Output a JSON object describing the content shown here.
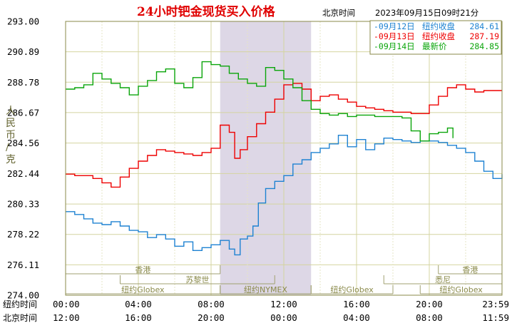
{
  "header": {
    "title": "24小时钯金现货买入价格",
    "tz_label": "北京时间",
    "timestamp": "2023年09月15日09时21分"
  },
  "chart_data": {
    "type": "line",
    "ylabel": "人民币/克",
    "ylim": [
      274.0,
      293.0
    ],
    "yticks": [
      "293.00",
      "290.89",
      "288.78",
      "286.67",
      "284.56",
      "282.44",
      "280.33",
      "278.22",
      "276.11",
      "274.00"
    ],
    "x_rows": [
      {
        "label": "纽约时间",
        "ticks": [
          "00:00",
          "04:00",
          "08:00",
          "12:00",
          "16:00",
          "20:00",
          "23:59"
        ]
      },
      {
        "label": "北京时间",
        "ticks": [
          "12:00",
          "16:00",
          "20:00",
          "00:00",
          "04:00",
          "08:00",
          "11:59"
        ]
      }
    ],
    "x_range_hours": [
      0,
      24
    ],
    "shaded_session_hours": [
      8.5,
      13.5
    ],
    "grid": true,
    "legend_position": "top-right",
    "markets": {
      "row1": [
        {
          "name": "香港",
          "start": 0,
          "end": 8.5
        },
        {
          "name": "香港",
          "start": 20.5,
          "end": 24
        }
      ],
      "row2": [
        {
          "name": "苏黎世",
          "start": 3,
          "end": 11.5
        },
        {
          "name": "悉尼",
          "start": 17.5,
          "end": 24
        }
      ],
      "row3": [
        {
          "name": "纽约Globex",
          "start": 0,
          "end": 8.5
        },
        {
          "name": "纽约NYMEX",
          "start": 8.5,
          "end": 13.5
        },
        {
          "name": "纽约Globex",
          "start": 13.5,
          "end": 18
        },
        {
          "name": "纽约Globex",
          "start": 19.5,
          "end": 24
        }
      ]
    },
    "series": [
      {
        "name": "09月12日",
        "legend_suffix": "纽约收盘",
        "legend_value": "284.61",
        "color": "#1e82d2",
        "points": [
          [
            0,
            279.8
          ],
          [
            0.5,
            279.6
          ],
          [
            1,
            279.3
          ],
          [
            1.5,
            279.0
          ],
          [
            2,
            278.9
          ],
          [
            2.5,
            279.1
          ],
          [
            3,
            278.8
          ],
          [
            3.5,
            278.5
          ],
          [
            4,
            278.4
          ],
          [
            4.5,
            278.0
          ],
          [
            5,
            278.2
          ],
          [
            5.5,
            277.9
          ],
          [
            6,
            277.4
          ],
          [
            6.5,
            277.7
          ],
          [
            7,
            277.1
          ],
          [
            7.5,
            277.3
          ],
          [
            8,
            277.5
          ],
          [
            8.5,
            277.8
          ],
          [
            9,
            277.2
          ],
          [
            9.3,
            276.8
          ],
          [
            9.6,
            277.9
          ],
          [
            10,
            278.1
          ],
          [
            10.3,
            278.8
          ],
          [
            10.6,
            280.4
          ],
          [
            11,
            281.4
          ],
          [
            11.5,
            281.9
          ],
          [
            12,
            282.3
          ],
          [
            12.5,
            283.1
          ],
          [
            13,
            283.4
          ],
          [
            13.5,
            283.9
          ],
          [
            14,
            284.2
          ],
          [
            14.5,
            284.5
          ],
          [
            15,
            285.1
          ],
          [
            15.5,
            284.3
          ],
          [
            16,
            284.8
          ],
          [
            16.5,
            284.1
          ],
          [
            17,
            284.5
          ],
          [
            17.5,
            284.9
          ],
          [
            18,
            284.8
          ],
          [
            18.5,
            284.7
          ],
          [
            19,
            284.6
          ],
          [
            19.5,
            284.7
          ],
          [
            20,
            284.7
          ],
          [
            20.5,
            284.6
          ],
          [
            21,
            284.4
          ],
          [
            21.5,
            284.2
          ],
          [
            22,
            283.9
          ],
          [
            22.5,
            283.3
          ],
          [
            23,
            282.6
          ],
          [
            23.5,
            282.1
          ],
          [
            24,
            282.4
          ]
        ]
      },
      {
        "name": "09月13日",
        "legend_suffix": "纽约收盘",
        "legend_value": "287.19",
        "color": "#ee0000",
        "points": [
          [
            0,
            282.4
          ],
          [
            0.5,
            282.3
          ],
          [
            1,
            282.3
          ],
          [
            1.5,
            282.1
          ],
          [
            2,
            281.8
          ],
          [
            2.5,
            281.5
          ],
          [
            3,
            282.2
          ],
          [
            3.5,
            282.8
          ],
          [
            4,
            283.3
          ],
          [
            4.5,
            283.7
          ],
          [
            5,
            284.1
          ],
          [
            5.5,
            284.0
          ],
          [
            6,
            283.9
          ],
          [
            6.5,
            283.8
          ],
          [
            7,
            283.7
          ],
          [
            7.5,
            283.9
          ],
          [
            8,
            284.2
          ],
          [
            8.5,
            285.8
          ],
          [
            9,
            285.3
          ],
          [
            9.3,
            283.5
          ],
          [
            9.6,
            284.1
          ],
          [
            10,
            285.0
          ],
          [
            10.5,
            285.9
          ],
          [
            11,
            286.7
          ],
          [
            11.5,
            287.6
          ],
          [
            12,
            288.6
          ],
          [
            12.5,
            288.7
          ],
          [
            13,
            288.3
          ],
          [
            13.5,
            287.5
          ],
          [
            14,
            287.8
          ],
          [
            14.5,
            287.9
          ],
          [
            15,
            287.6
          ],
          [
            15.5,
            287.4
          ],
          [
            16,
            287.1
          ],
          [
            16.5,
            287.0
          ],
          [
            17,
            286.9
          ],
          [
            17.5,
            286.8
          ],
          [
            18,
            286.7
          ],
          [
            18.5,
            286.7
          ],
          [
            19,
            286.6
          ],
          [
            19.5,
            286.6
          ],
          [
            20,
            287.2
          ],
          [
            20.5,
            287.8
          ],
          [
            21,
            288.4
          ],
          [
            21.5,
            288.6
          ],
          [
            22,
            288.3
          ],
          [
            22.5,
            288.1
          ],
          [
            23,
            288.2
          ],
          [
            23.5,
            288.2
          ],
          [
            24,
            288.2
          ]
        ]
      },
      {
        "name": "09月14日",
        "legend_suffix": "最新价",
        "legend_value": "284.85",
        "color": "#0aa50a",
        "points": [
          [
            0,
            288.3
          ],
          [
            0.5,
            288.4
          ],
          [
            1,
            288.6
          ],
          [
            1.5,
            289.4
          ],
          [
            2,
            289.0
          ],
          [
            2.5,
            288.7
          ],
          [
            3,
            288.4
          ],
          [
            3.5,
            287.9
          ],
          [
            4,
            288.5
          ],
          [
            4.5,
            288.9
          ],
          [
            5,
            289.5
          ],
          [
            5.5,
            289.7
          ],
          [
            6,
            288.7
          ],
          [
            6.5,
            288.4
          ],
          [
            7,
            289.1
          ],
          [
            7.5,
            290.2
          ],
          [
            8,
            290.0
          ],
          [
            8.5,
            289.9
          ],
          [
            9,
            289.4
          ],
          [
            9.5,
            289.0
          ],
          [
            10,
            288.7
          ],
          [
            10.5,
            288.5
          ],
          [
            11,
            289.8
          ],
          [
            11.5,
            289.6
          ],
          [
            12,
            289.0
          ],
          [
            12.5,
            288.4
          ],
          [
            13,
            287.5
          ],
          [
            13.5,
            286.9
          ],
          [
            14,
            286.6
          ],
          [
            14.5,
            286.5
          ],
          [
            15,
            286.6
          ],
          [
            15.5,
            286.4
          ],
          [
            16,
            286.5
          ],
          [
            16.5,
            286.5
          ],
          [
            17,
            286.4
          ],
          [
            17.5,
            286.4
          ],
          [
            18,
            286.4
          ],
          [
            18.5,
            286.3
          ],
          [
            19,
            285.4
          ],
          [
            19.5,
            284.7
          ],
          [
            20,
            285.2
          ],
          [
            20.5,
            285.3
          ],
          [
            21,
            285.6
          ],
          [
            21.3,
            284.9
          ]
        ]
      }
    ]
  }
}
